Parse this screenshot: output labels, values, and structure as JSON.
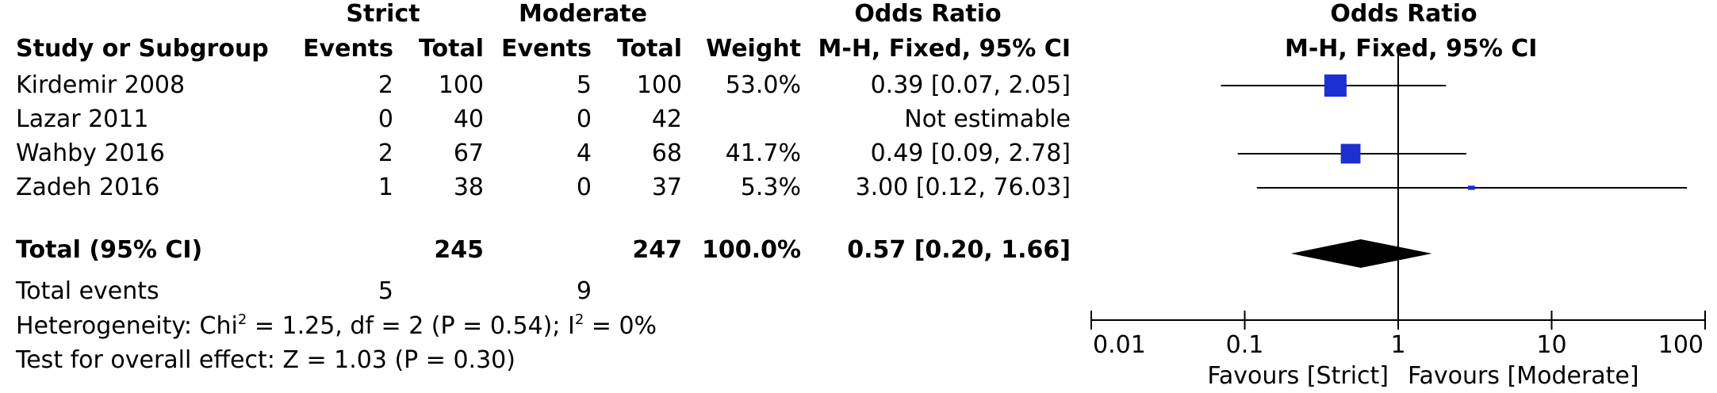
{
  "header": {
    "group1": "Strict",
    "group2": "Moderate",
    "or_title": "Odds Ratio",
    "plot_title": "Odds Ratio",
    "col_study": "Study or Subgroup",
    "col_events1": "Events",
    "col_total1": "Total",
    "col_events2": "Events",
    "col_total2": "Total",
    "col_weight": "Weight",
    "col_method": "M-H, Fixed, 95% CI",
    "plot_method": "M-H, Fixed, 95% CI"
  },
  "studies": [
    {
      "name": "Kirdemir 2008",
      "events1": "2",
      "total1": "100",
      "events2": "5",
      "total2": "100",
      "weight": "53.0%",
      "ci_text": "0.39 [0.07, 2.05]"
    },
    {
      "name": "Lazar 2011",
      "events1": "0",
      "total1": "40",
      "events2": "0",
      "total2": "42",
      "weight": "",
      "ci_text": "Not estimable"
    },
    {
      "name": "Wahby 2016",
      "events1": "2",
      "total1": "67",
      "events2": "4",
      "total2": "68",
      "weight": "41.7%",
      "ci_text": "0.49 [0.09, 2.78]"
    },
    {
      "name": "Zadeh 2016",
      "events1": "1",
      "total1": "38",
      "events2": "0",
      "total2": "37",
      "weight": "5.3%",
      "ci_text": "3.00 [0.12, 76.03]"
    }
  ],
  "total": {
    "label": "Total (95% CI)",
    "total1": "245",
    "total2": "247",
    "weight": "100.0%",
    "ci_text": "0.57 [0.20, 1.66]"
  },
  "total_events": {
    "label": "Total events",
    "events1": "5",
    "events2": "9"
  },
  "heterogeneity": {
    "prefix": "Heterogeneity: Chi",
    "sup1": "2",
    "mid": " = 1.25, df = 2 (P = 0.54); I",
    "sup2": "2",
    "suffix": " = 0%"
  },
  "overall_effect": "Test for overall effect: Z = 1.03 (P = 0.30)",
  "axis": {
    "favours_left": "Favours [Strict]",
    "favours_right": "Favours [Moderate]"
  },
  "colors": {
    "marker": "#1d2fd1",
    "diamond": "#000000",
    "lines": "#000000"
  },
  "chart_data": {
    "type": "forest",
    "scale": "log",
    "xlim": [
      0.01,
      100
    ],
    "ticks": [
      {
        "value": 0.01,
        "label": "0.01"
      },
      {
        "value": 0.1,
        "label": "0.1"
      },
      {
        "value": 1,
        "label": "1"
      },
      {
        "value": 10,
        "label": "10"
      },
      {
        "value": 100,
        "label": "100"
      }
    ],
    "reference_line": 1,
    "points": [
      {
        "study": "Kirdemir 2008",
        "or": 0.39,
        "lower": 0.07,
        "upper": 2.05,
        "weight": 53.0
      },
      {
        "study": "Lazar 2011",
        "or": null,
        "lower": null,
        "upper": null,
        "weight": null
      },
      {
        "study": "Wahby 2016",
        "or": 0.49,
        "lower": 0.09,
        "upper": 2.78,
        "weight": 41.7
      },
      {
        "study": "Zadeh 2016",
        "or": 3.0,
        "lower": 0.12,
        "upper": 76.03,
        "weight": 5.3
      }
    ],
    "pooled": {
      "or": 0.57,
      "lower": 0.2,
      "upper": 1.66
    }
  }
}
